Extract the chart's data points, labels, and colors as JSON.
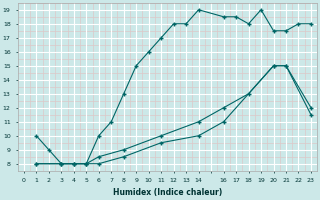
{
  "xlabel": "Humidex (Indice chaleur)",
  "bg_color": "#cce8e8",
  "line_color": "#006666",
  "grid_color_major": "#ffffff",
  "grid_color_minor": "#ddc8c8",
  "xlim": [
    -0.5,
    23.5
  ],
  "ylim": [
    7.5,
    19.5
  ],
  "yticks": [
    8,
    9,
    10,
    11,
    12,
    13,
    14,
    15,
    16,
    17,
    18,
    19
  ],
  "line1_x": [
    1,
    2,
    3,
    4,
    5,
    6,
    7,
    8,
    9,
    10,
    11,
    12,
    13,
    14,
    16,
    17,
    18,
    19,
    20,
    21,
    22,
    23
  ],
  "line1_y": [
    10,
    9,
    8,
    8,
    8,
    10,
    11,
    13,
    15,
    16,
    17,
    18,
    18,
    19,
    18.5,
    18.5,
    18,
    19,
    17.5,
    17.5,
    18,
    18
  ],
  "line2_x": [
    1,
    3,
    4,
    5,
    6,
    8,
    11,
    14,
    16,
    18,
    20,
    21,
    23
  ],
  "line2_y": [
    8,
    8,
    8,
    8,
    8.5,
    9,
    10,
    11,
    12,
    13,
    15,
    15,
    12
  ],
  "line3_x": [
    1,
    3,
    4,
    5,
    6,
    8,
    11,
    14,
    16,
    20,
    21,
    23
  ],
  "line3_y": [
    8,
    8,
    8,
    8,
    8,
    8.5,
    9.5,
    10,
    11,
    15,
    15,
    11.5
  ]
}
